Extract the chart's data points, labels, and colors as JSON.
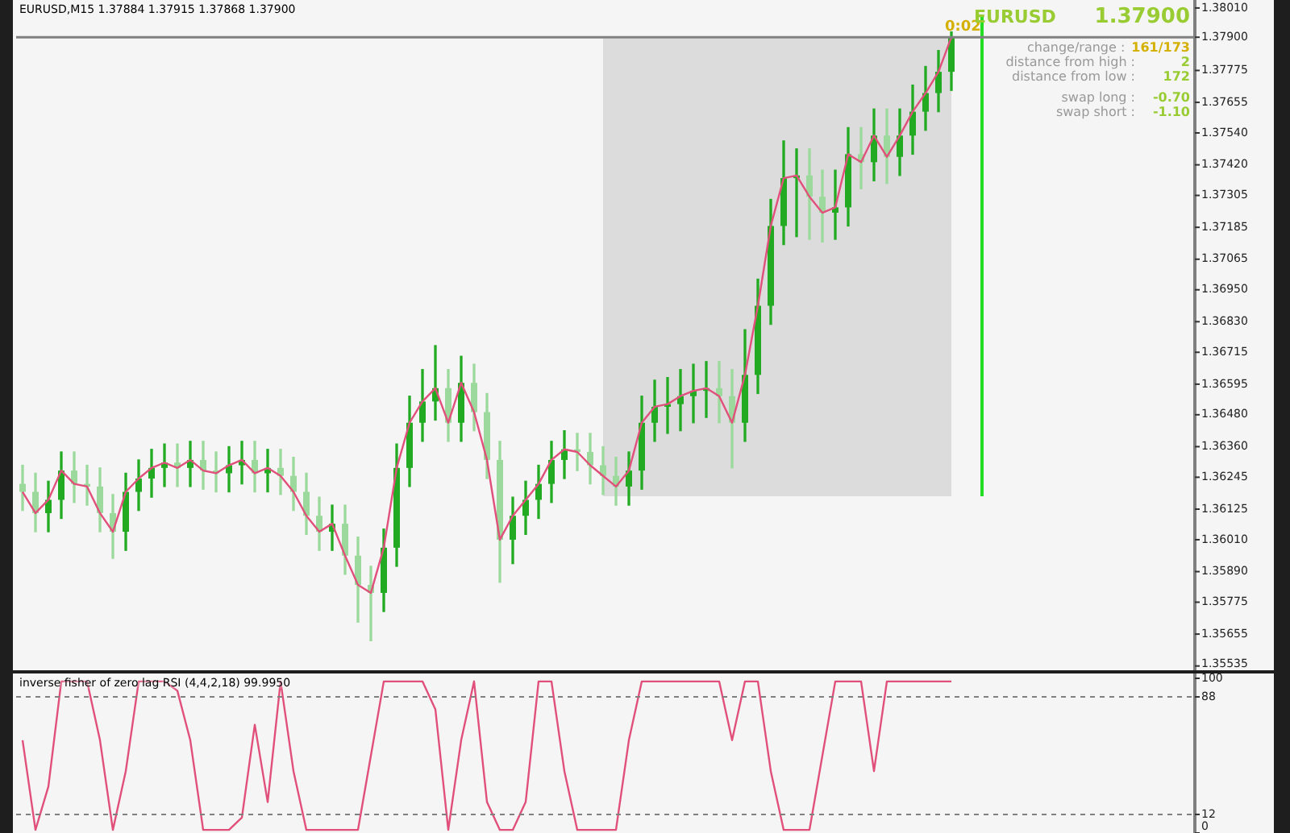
{
  "chart_data": [
    {
      "type": "candlestick",
      "title": "EURUSD,M15 1.37884 1.37915 1.37868 1.37900",
      "colors": [
        "#9cd99c",
        "#9cd99c",
        "#22aa22",
        "#22aa22",
        "#9cd99c",
        "#9cd99c",
        "#9cd99c",
        "#9cd99c",
        "#22aa22",
        "#22aa22",
        "#22aa22",
        "#22aa22",
        "#9cd99c",
        "#22aa22",
        "#9cd99c",
        "#9cd99c",
        "#22aa22",
        "#22aa22",
        "#9cd99c",
        "#22aa22",
        "#9cd99c",
        "#9cd99c",
        "#9cd99c",
        "#9cd99c",
        "#22aa22",
        "#9cd99c",
        "#9cd99c",
        "#9cd99c",
        "#22aa22",
        "#22aa22",
        "#22aa22",
        "#22aa22",
        "#22aa22",
        "#9cd99c",
        "#22aa22",
        "#9cd99c",
        "#9cd99c",
        "#9cd99c",
        "#22aa22",
        "#22aa22",
        "#22aa22",
        "#22aa22",
        "#22aa22",
        "#9cd99c",
        "#9cd99c",
        "#9cd99c",
        "#9cd99c",
        "#22aa22",
        "#22aa22",
        "#22aa22",
        "#22aa22",
        "#22aa22",
        "#22aa22",
        "#22aa22",
        "#9cd99c",
        "#9cd99c",
        "#22aa22",
        "#22aa22",
        "#22aa22",
        "#22aa22",
        "#22aa22",
        "#9cd99c",
        "#9cd99c",
        "#22aa22",
        "#22aa22",
        "#9cd99c",
        "#22aa22",
        "#9cd99c",
        "#22aa22",
        "#22aa22",
        "#22aa22",
        "#22aa22",
        "#22aa22"
      ],
      "categories": [
        null,
        null,
        null,
        null,
        null,
        null,
        null,
        null,
        null,
        null,
        null,
        null,
        null,
        null,
        null,
        null,
        null,
        null,
        null,
        null,
        null,
        null,
        null,
        null,
        null,
        null,
        null,
        null,
        null,
        null,
        null,
        null,
        null,
        null,
        null,
        null,
        null,
        null,
        null,
        null,
        null,
        null,
        null,
        null,
        null,
        null,
        null,
        null,
        null,
        null,
        null,
        null,
        null,
        null,
        null,
        null,
        null,
        null,
        null,
        null,
        null,
        null,
        null,
        null,
        null,
        null,
        null,
        null,
        null,
        null,
        null,
        null,
        null
      ],
      "ohlc": [
        [
          1.3622,
          1.3629,
          1.3612,
          1.3619
        ],
        [
          1.3619,
          1.3626,
          1.3604,
          1.3611
        ],
        [
          1.3611,
          1.3623,
          1.3604,
          1.3616
        ],
        [
          1.3616,
          1.3634,
          1.3609,
          1.3627
        ],
        [
          1.3627,
          1.3634,
          1.3615,
          1.3622
        ],
        [
          1.3622,
          1.3629,
          1.3614,
          1.3621
        ],
        [
          1.3621,
          1.3628,
          1.3604,
          1.3611
        ],
        [
          1.3611,
          1.3618,
          1.3594,
          1.3604
        ],
        [
          1.3604,
          1.3626,
          1.3597,
          1.3619
        ],
        [
          1.3619,
          1.3631,
          1.3612,
          1.3624
        ],
        [
          1.3624,
          1.3635,
          1.3617,
          1.3628
        ],
        [
          1.3628,
          1.3637,
          1.3621,
          1.363
        ],
        [
          1.363,
          1.3637,
          1.3621,
          1.3628
        ],
        [
          1.3628,
          1.3638,
          1.3621,
          1.3631
        ],
        [
          1.3631,
          1.3638,
          1.362,
          1.3627
        ],
        [
          1.3627,
          1.3634,
          1.3619,
          1.3626
        ],
        [
          1.3626,
          1.3636,
          1.3619,
          1.3629
        ],
        [
          1.3629,
          1.3638,
          1.3622,
          1.3631
        ],
        [
          1.3631,
          1.3638,
          1.3619,
          1.3626
        ],
        [
          1.3626,
          1.3635,
          1.3619,
          1.3628
        ],
        [
          1.3628,
          1.3635,
          1.3618,
          1.3625
        ],
        [
          1.3625,
          1.3632,
          1.3612,
          1.3619
        ],
        [
          1.3619,
          1.3626,
          1.3603,
          1.361
        ],
        [
          1.361,
          1.3617,
          1.3597,
          1.3604
        ],
        [
          1.3604,
          1.3614,
          1.3597,
          1.3607
        ],
        [
          1.3607,
          1.3614,
          1.3588,
          1.3595
        ],
        [
          1.3595,
          1.3602,
          1.357,
          1.3584
        ],
        [
          1.3584,
          1.3591,
          1.3563,
          1.3581
        ],
        [
          1.3581,
          1.3605,
          1.3574,
          1.3598
        ],
        [
          1.3598,
          1.3637,
          1.3591,
          1.3628
        ],
        [
          1.3628,
          1.3655,
          1.3621,
          1.3645
        ],
        [
          1.3645,
          1.3665,
          1.3638,
          1.3653
        ],
        [
          1.3653,
          1.3674,
          1.3646,
          1.3658
        ],
        [
          1.3658,
          1.3665,
          1.3638,
          1.3645
        ],
        [
          1.3645,
          1.367,
          1.3638,
          1.366
        ],
        [
          1.366,
          1.3667,
          1.3642,
          1.3649
        ],
        [
          1.3649,
          1.3656,
          1.3624,
          1.3631
        ],
        [
          1.3631,
          1.3638,
          1.3585,
          1.3601
        ],
        [
          1.3601,
          1.3617,
          1.3592,
          1.361
        ],
        [
          1.361,
          1.3623,
          1.3603,
          1.3616
        ],
        [
          1.3616,
          1.3629,
          1.3609,
          1.3622
        ],
        [
          1.3622,
          1.3638,
          1.3615,
          1.3631
        ],
        [
          1.3631,
          1.3642,
          1.3624,
          1.3635
        ],
        [
          1.3635,
          1.3641,
          1.3627,
          1.3634
        ],
        [
          1.3634,
          1.3641,
          1.3622,
          1.3629
        ],
        [
          1.3629,
          1.3636,
          1.3618,
          1.3625
        ],
        [
          1.3625,
          1.3632,
          1.3614,
          1.3621
        ],
        [
          1.3621,
          1.3634,
          1.3614,
          1.3627
        ],
        [
          1.3627,
          1.3655,
          1.362,
          1.3645
        ],
        [
          1.3645,
          1.3661,
          1.3638,
          1.3651
        ],
        [
          1.3651,
          1.3662,
          1.3641,
          1.3652
        ],
        [
          1.3652,
          1.3665,
          1.3642,
          1.3655
        ],
        [
          1.3655,
          1.3667,
          1.3645,
          1.3657
        ],
        [
          1.3657,
          1.3668,
          1.3647,
          1.3658
        ],
        [
          1.3658,
          1.3668,
          1.3645,
          1.3655
        ],
        [
          1.3655,
          1.3665,
          1.3628,
          1.3645
        ],
        [
          1.3645,
          1.368,
          1.3638,
          1.3663
        ],
        [
          1.3663,
          1.3699,
          1.3656,
          1.3689
        ],
        [
          1.3689,
          1.3729,
          1.3682,
          1.3719
        ],
        [
          1.3719,
          1.3751,
          1.3712,
          1.3737
        ],
        [
          1.3737,
          1.3748,
          1.3715,
          1.3738
        ],
        [
          1.3738,
          1.3748,
          1.3714,
          1.373
        ],
        [
          1.373,
          1.374,
          1.3713,
          1.3724
        ],
        [
          1.3724,
          1.374,
          1.3714,
          1.3726
        ],
        [
          1.3726,
          1.3756,
          1.3719,
          1.3746
        ],
        [
          1.3746,
          1.3756,
          1.3733,
          1.3743
        ],
        [
          1.3743,
          1.3763,
          1.3736,
          1.3753
        ],
        [
          1.3753,
          1.3763,
          1.3735,
          1.3745
        ],
        [
          1.3745,
          1.3763,
          1.3738,
          1.3753
        ],
        [
          1.3753,
          1.3772,
          1.3746,
          1.3762
        ],
        [
          1.3762,
          1.3779,
          1.3755,
          1.3769
        ],
        [
          1.3769,
          1.3785,
          1.3762,
          1.3777
        ],
        [
          1.3777,
          1.3792,
          1.377,
          1.379
        ]
      ],
      "series": [
        {
          "type": "line",
          "color": "#e0507a",
          "values": [
            1.3619,
            1.3611,
            1.3616,
            1.3627,
            1.3622,
            1.3621,
            1.3611,
            1.3604,
            1.3619,
            1.3624,
            1.3628,
            1.363,
            1.3628,
            1.3631,
            1.3627,
            1.3626,
            1.3629,
            1.3631,
            1.3626,
            1.3628,
            1.3625,
            1.3619,
            1.361,
            1.3604,
            1.3607,
            1.3595,
            1.3584,
            1.3581,
            1.3598,
            1.3628,
            1.3645,
            1.3653,
            1.3658,
            1.3645,
            1.366,
            1.3649,
            1.3631,
            1.3601,
            1.361,
            1.3616,
            1.3622,
            1.3631,
            1.3635,
            1.3634,
            1.3629,
            1.3625,
            1.3621,
            1.3627,
            1.3645,
            1.3651,
            1.3652,
            1.3655,
            1.3657,
            1.3658,
            1.3655,
            1.3645,
            1.3663,
            1.3689,
            1.3719,
            1.3737,
            1.3738,
            1.373,
            1.3724,
            1.3726,
            1.3746,
            1.3743,
            1.3753,
            1.3745,
            1.3753,
            1.3762,
            1.3769,
            1.3777,
            1.379
          ]
        }
      ],
      "marker": "none",
      "ylim": [
        1.35525,
        1.3804
      ],
      "yticks": [
        {
          "value": 1.3801,
          "label": "1.38010"
        },
        {
          "value": 1.379,
          "label": "1.37900"
        },
        1.37775,
        1.37655,
        {
          "value": 1.3754,
          "label": "1.37540"
        },
        {
          "value": 1.3742,
          "label": "1.37420"
        },
        1.37305,
        1.37185,
        1.37065,
        {
          "value": 1.3695,
          "label": "1.36950"
        },
        {
          "value": 1.3683,
          "label": "1.36830"
        },
        1.36715,
        1.36595,
        {
          "value": 1.3648,
          "label": "1.36480"
        },
        {
          "value": 1.3636,
          "label": "1.36360"
        },
        1.36245,
        1.36125,
        {
          "value": 1.3601,
          "label": "1.36010"
        },
        {
          "value": 1.3589,
          "label": "1.35890"
        },
        1.35775,
        1.35655,
        1.35535
      ],
      "tick_labels": "y",
      "grid": false,
      "legend": false,
      "ref_lines": [
        {
          "axis": "y",
          "value": 1.379,
          "color": "#808080"
        }
      ],
      "annotations": [
        "0:02",
        "EURUSD",
        "1.37900",
        "change/range : 161/173",
        "distance from high : 2",
        "distance from low : 172",
        "swap long : -0.70",
        "swap short : -1.10"
      ]
    },
    {
      "type": "line",
      "title": "inverse fisher of zero lag RSI (4,4,2,18) 99.9950",
      "color": "#e0507a",
      "marker": "none",
      "categories": [
        null,
        null,
        null,
        null,
        null,
        null,
        null,
        null,
        null,
        null,
        null,
        null,
        null,
        null,
        null,
        null,
        null,
        null,
        null,
        null,
        null,
        null,
        null,
        null,
        null,
        null,
        null,
        null,
        null,
        null,
        null,
        null,
        null,
        null,
        null,
        null,
        null,
        null,
        null,
        null,
        null,
        null,
        null,
        null,
        null,
        null,
        null,
        null,
        null,
        null,
        null,
        null,
        null,
        null,
        null,
        null,
        null,
        null,
        null,
        null,
        null,
        null,
        null,
        null,
        null,
        null,
        null,
        null,
        null,
        null,
        null,
        null,
        null
      ],
      "values": [
        60,
        2,
        30,
        98,
        98,
        98,
        60,
        2,
        40,
        98,
        98,
        98,
        92,
        60,
        2,
        2,
        2,
        10,
        70,
        20,
        98,
        40,
        2,
        2,
        2,
        2,
        2,
        50,
        98,
        98,
        98,
        98,
        80,
        2,
        60,
        98,
        20,
        2,
        2,
        20,
        98,
        98,
        40,
        2,
        2,
        2,
        2,
        60,
        98,
        98,
        98,
        98,
        98,
        98,
        98,
        60,
        98,
        98,
        40,
        2,
        2,
        2,
        50,
        98,
        98,
        98,
        40,
        98,
        98,
        98,
        98,
        98,
        98
      ],
      "ylim": [
        0,
        100
      ],
      "yticks": [
        0,
        12,
        88,
        100
      ],
      "tick_labels": "y",
      "grid": false,
      "legend": false,
      "ref_lines": [
        {
          "axis": "y",
          "value": 88,
          "line_style": "dashed",
          "color": "#808080"
        },
        {
          "axis": "y",
          "value": 12,
          "line_style": "dashed",
          "color": "#808080"
        }
      ]
    }
  ]
}
